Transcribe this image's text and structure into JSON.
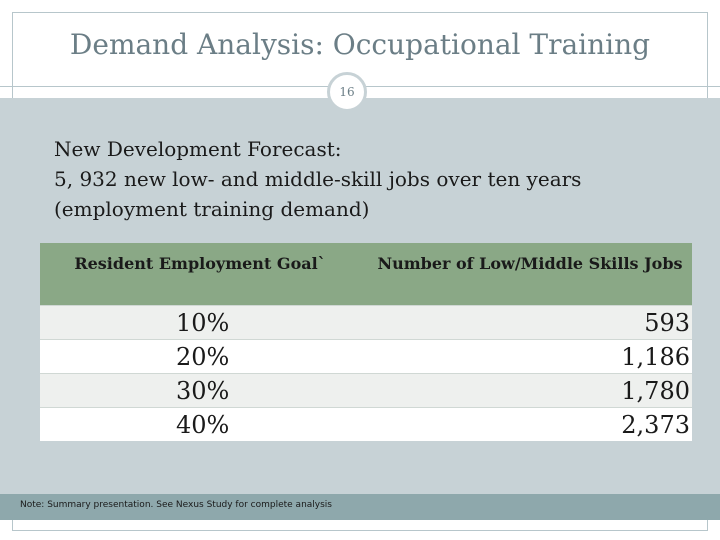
{
  "title": "Demand Analysis: Occupational Training",
  "slide_number": "16",
  "forecast": {
    "line1": "New Development Forecast:",
    "line2": "5, 932 new low- and middle-skill jobs over ten years",
    "line3": "(employment training demand)"
  },
  "table": {
    "headers": [
      "Resident Employment Goal`",
      "Number of Low/Middle Skills Jobs"
    ],
    "rows": [
      {
        "goal": "10%",
        "jobs": "593"
      },
      {
        "goal": "20%",
        "jobs": "1,186"
      },
      {
        "goal": "30%",
        "jobs": "1,780"
      },
      {
        "goal": "40%",
        "jobs": "2,373"
      }
    ]
  },
  "note": "Note: Summary presentation. See Nexus Study for complete analysis",
  "colors": {
    "title": "#6b7e86",
    "content_bg": "#c7d2d6",
    "header_green": "#8aa886",
    "footer_bar": "#8ea8ac"
  }
}
